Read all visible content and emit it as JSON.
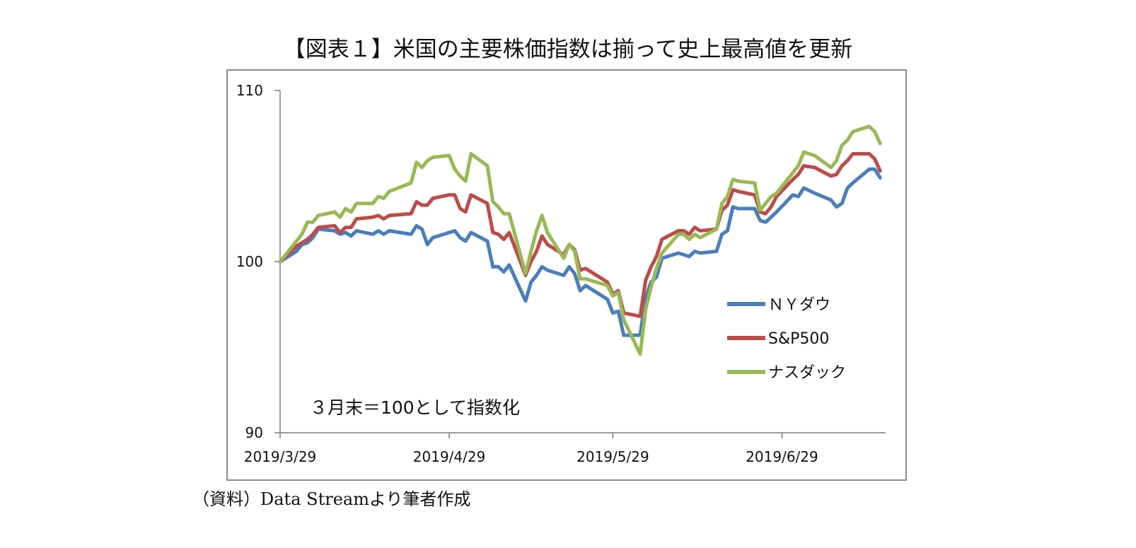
{
  "title": "【図表１】米国の主要株価指数は揃って史上最高値を更新",
  "source": "（資料）Data Streamより筆者作成",
  "colors": {
    "ny_dow": "#4a7ebb",
    "sp500": "#be4b48",
    "nasdaq": "#98b954",
    "axis": "#7f7f7f"
  },
  "chart_data": {
    "type": "line",
    "title": "【図表１】米国の主要株価指数は揃って史上最高値を更新",
    "annotation": "３月末＝100として指数化",
    "ylim": [
      90,
      110
    ],
    "yticks": [
      90,
      100,
      110
    ],
    "xlim": [
      "2019-03-29",
      "2019-07-18"
    ],
    "xticks": [
      "2019/3/29",
      "2019/4/29",
      "2019/5/29",
      "2019/6/29"
    ],
    "xtick_dates": [
      "2019-03-29",
      "2019-04-29",
      "2019-05-29",
      "2019-06-29"
    ],
    "grid": false,
    "legend_position": "right-center",
    "series": [
      {
        "name": "ＮＹダウ",
        "color": "#4a7ebb",
        "points": [
          [
            "2019-03-29",
            100.0
          ],
          [
            "2019-04-01",
            100.6
          ],
          [
            "2019-04-02",
            101.0
          ],
          [
            "2019-04-03",
            101.1
          ],
          [
            "2019-04-04",
            101.4
          ],
          [
            "2019-04-05",
            101.9
          ],
          [
            "2019-04-08",
            101.8
          ],
          [
            "2019-04-09",
            101.6
          ],
          [
            "2019-04-10",
            101.7
          ],
          [
            "2019-04-11",
            101.5
          ],
          [
            "2019-04-12",
            101.8
          ],
          [
            "2019-04-15",
            101.6
          ],
          [
            "2019-04-16",
            101.8
          ],
          [
            "2019-04-17",
            101.6
          ],
          [
            "2019-04-18",
            101.8
          ],
          [
            "2019-04-22",
            101.6
          ],
          [
            "2019-04-23",
            102.1
          ],
          [
            "2019-04-24",
            101.9
          ],
          [
            "2019-04-25",
            101.0
          ],
          [
            "2019-04-26",
            101.4
          ],
          [
            "2019-04-29",
            101.7
          ],
          [
            "2019-04-30",
            101.8
          ],
          [
            "2019-05-01",
            101.4
          ],
          [
            "2019-05-02",
            101.2
          ],
          [
            "2019-05-03",
            101.7
          ],
          [
            "2019-05-06",
            101.2
          ],
          [
            "2019-05-07",
            99.7
          ],
          [
            "2019-05-08",
            99.7
          ],
          [
            "2019-05-09",
            99.4
          ],
          [
            "2019-05-10",
            99.8
          ],
          [
            "2019-05-13",
            97.7
          ],
          [
            "2019-05-14",
            98.8
          ],
          [
            "2019-05-15",
            99.2
          ],
          [
            "2019-05-16",
            99.7
          ],
          [
            "2019-05-17",
            99.5
          ],
          [
            "2019-05-20",
            99.2
          ],
          [
            "2019-05-21",
            99.7
          ],
          [
            "2019-05-22",
            99.3
          ],
          [
            "2019-05-23",
            98.3
          ],
          [
            "2019-05-24",
            98.6
          ],
          [
            "2019-05-28",
            97.8
          ],
          [
            "2019-05-29",
            97.0
          ],
          [
            "2019-05-30",
            97.1
          ],
          [
            "2019-05-31",
            95.7
          ],
          [
            "2019-06-03",
            95.7
          ],
          [
            "2019-06-04",
            97.9
          ],
          [
            "2019-06-05",
            98.8
          ],
          [
            "2019-06-06",
            99.1
          ],
          [
            "2019-06-07",
            100.2
          ],
          [
            "2019-06-10",
            100.5
          ],
          [
            "2019-06-11",
            100.4
          ],
          [
            "2019-06-12",
            100.3
          ],
          [
            "2019-06-13",
            100.6
          ],
          [
            "2019-06-14",
            100.5
          ],
          [
            "2019-06-17",
            100.6
          ],
          [
            "2019-06-18",
            101.6
          ],
          [
            "2019-06-19",
            101.8
          ],
          [
            "2019-06-20",
            103.2
          ],
          [
            "2019-06-21",
            103.1
          ],
          [
            "2019-06-24",
            103.1
          ],
          [
            "2019-06-25",
            102.4
          ],
          [
            "2019-06-26",
            102.3
          ],
          [
            "2019-06-27",
            102.6
          ],
          [
            "2019-06-28",
            102.9
          ],
          [
            "2019-07-01",
            103.9
          ],
          [
            "2019-07-02",
            103.8
          ],
          [
            "2019-07-03",
            104.3
          ],
          [
            "2019-07-05",
            104.0
          ],
          [
            "2019-07-08",
            103.6
          ],
          [
            "2019-07-09",
            103.2
          ],
          [
            "2019-07-10",
            103.4
          ],
          [
            "2019-07-11",
            104.3
          ],
          [
            "2019-07-12",
            104.6
          ],
          [
            "2019-07-15",
            105.4
          ],
          [
            "2019-07-16",
            105.4
          ],
          [
            "2019-07-17",
            104.9
          ]
        ]
      },
      {
        "name": "S&P500",
        "color": "#be4b48",
        "points": [
          [
            "2019-03-29",
            100.0
          ],
          [
            "2019-04-01",
            100.9
          ],
          [
            "2019-04-02",
            101.1
          ],
          [
            "2019-04-03",
            101.3
          ],
          [
            "2019-04-04",
            101.6
          ],
          [
            "2019-04-05",
            102.0
          ],
          [
            "2019-04-08",
            102.1
          ],
          [
            "2019-04-09",
            101.7
          ],
          [
            "2019-04-10",
            102.0
          ],
          [
            "2019-04-11",
            102.0
          ],
          [
            "2019-04-12",
            102.5
          ],
          [
            "2019-04-15",
            102.6
          ],
          [
            "2019-04-16",
            102.7
          ],
          [
            "2019-04-17",
            102.5
          ],
          [
            "2019-04-18",
            102.7
          ],
          [
            "2019-04-22",
            102.8
          ],
          [
            "2019-04-23",
            103.5
          ],
          [
            "2019-04-24",
            103.3
          ],
          [
            "2019-04-25",
            103.3
          ],
          [
            "2019-04-26",
            103.7
          ],
          [
            "2019-04-29",
            103.9
          ],
          [
            "2019-04-30",
            103.9
          ],
          [
            "2019-05-01",
            103.1
          ],
          [
            "2019-05-02",
            102.9
          ],
          [
            "2019-05-03",
            103.9
          ],
          [
            "2019-05-06",
            103.4
          ],
          [
            "2019-05-07",
            101.7
          ],
          [
            "2019-05-08",
            101.6
          ],
          [
            "2019-05-09",
            101.3
          ],
          [
            "2019-05-10",
            101.7
          ],
          [
            "2019-05-13",
            99.2
          ],
          [
            "2019-05-14",
            100.0
          ],
          [
            "2019-05-15",
            100.6
          ],
          [
            "2019-05-16",
            101.5
          ],
          [
            "2019-05-17",
            101.0
          ],
          [
            "2019-05-20",
            100.4
          ],
          [
            "2019-05-21",
            101.0
          ],
          [
            "2019-05-22",
            100.7
          ],
          [
            "2019-05-23",
            99.5
          ],
          [
            "2019-05-24",
            99.6
          ],
          [
            "2019-05-28",
            98.8
          ],
          [
            "2019-05-29",
            98.1
          ],
          [
            "2019-05-30",
            98.3
          ],
          [
            "2019-05-31",
            97.0
          ],
          [
            "2019-06-03",
            96.8
          ],
          [
            "2019-06-04",
            98.9
          ],
          [
            "2019-06-05",
            99.7
          ],
          [
            "2019-06-06",
            100.3
          ],
          [
            "2019-06-07",
            101.3
          ],
          [
            "2019-06-10",
            101.8
          ],
          [
            "2019-06-11",
            101.8
          ],
          [
            "2019-06-12",
            101.6
          ],
          [
            "2019-06-13",
            102.0
          ],
          [
            "2019-06-14",
            101.8
          ],
          [
            "2019-06-17",
            101.9
          ],
          [
            "2019-06-18",
            103.0
          ],
          [
            "2019-06-19",
            103.3
          ],
          [
            "2019-06-20",
            104.2
          ],
          [
            "2019-06-21",
            104.1
          ],
          [
            "2019-06-24",
            103.9
          ],
          [
            "2019-06-25",
            102.9
          ],
          [
            "2019-06-26",
            102.8
          ],
          [
            "2019-06-27",
            103.2
          ],
          [
            "2019-06-28",
            103.8
          ],
          [
            "2019-07-01",
            104.8
          ],
          [
            "2019-07-02",
            105.1
          ],
          [
            "2019-07-03",
            105.6
          ],
          [
            "2019-07-05",
            105.5
          ],
          [
            "2019-07-08",
            105.0
          ],
          [
            "2019-07-09",
            105.1
          ],
          [
            "2019-07-10",
            105.6
          ],
          [
            "2019-07-11",
            105.9
          ],
          [
            "2019-07-12",
            106.3
          ],
          [
            "2019-07-15",
            106.3
          ],
          [
            "2019-07-16",
            106.0
          ],
          [
            "2019-07-17",
            105.3
          ]
        ]
      },
      {
        "name": "ナスダック",
        "color": "#98b954",
        "points": [
          [
            "2019-03-29",
            100.0
          ],
          [
            "2019-04-01",
            101.2
          ],
          [
            "2019-04-02",
            101.6
          ],
          [
            "2019-04-03",
            102.3
          ],
          [
            "2019-04-04",
            102.3
          ],
          [
            "2019-04-05",
            102.7
          ],
          [
            "2019-04-08",
            102.9
          ],
          [
            "2019-04-09",
            102.6
          ],
          [
            "2019-04-10",
            103.1
          ],
          [
            "2019-04-11",
            102.9
          ],
          [
            "2019-04-12",
            103.4
          ],
          [
            "2019-04-15",
            103.4
          ],
          [
            "2019-04-16",
            103.8
          ],
          [
            "2019-04-17",
            103.7
          ],
          [
            "2019-04-18",
            104.1
          ],
          [
            "2019-04-22",
            104.6
          ],
          [
            "2019-04-23",
            105.8
          ],
          [
            "2019-04-24",
            105.5
          ],
          [
            "2019-04-25",
            105.9
          ],
          [
            "2019-04-26",
            106.1
          ],
          [
            "2019-04-29",
            106.2
          ],
          [
            "2019-04-30",
            105.4
          ],
          [
            "2019-05-01",
            105.0
          ],
          [
            "2019-05-02",
            104.7
          ],
          [
            "2019-05-03",
            106.3
          ],
          [
            "2019-05-06",
            105.6
          ],
          [
            "2019-05-07",
            103.5
          ],
          [
            "2019-05-08",
            103.2
          ],
          [
            "2019-05-09",
            102.8
          ],
          [
            "2019-05-10",
            102.8
          ],
          [
            "2019-05-13",
            99.3
          ],
          [
            "2019-05-14",
            100.6
          ],
          [
            "2019-05-15",
            101.8
          ],
          [
            "2019-05-16",
            102.7
          ],
          [
            "2019-05-17",
            101.7
          ],
          [
            "2019-05-20",
            100.2
          ],
          [
            "2019-05-21",
            101.0
          ],
          [
            "2019-05-22",
            100.6
          ],
          [
            "2019-05-23",
            99.0
          ],
          [
            "2019-05-24",
            99.0
          ],
          [
            "2019-05-28",
            98.6
          ],
          [
            "2019-05-29",
            98.0
          ],
          [
            "2019-05-30",
            98.2
          ],
          [
            "2019-05-31",
            96.6
          ],
          [
            "2019-06-03",
            94.6
          ],
          [
            "2019-06-04",
            97.2
          ],
          [
            "2019-06-05",
            98.5
          ],
          [
            "2019-06-06",
            99.6
          ],
          [
            "2019-06-07",
            100.5
          ],
          [
            "2019-06-10",
            101.6
          ],
          [
            "2019-06-11",
            101.6
          ],
          [
            "2019-06-12",
            101.3
          ],
          [
            "2019-06-13",
            101.6
          ],
          [
            "2019-06-14",
            101.4
          ],
          [
            "2019-06-17",
            101.9
          ],
          [
            "2019-06-18",
            103.4
          ],
          [
            "2019-06-19",
            103.8
          ],
          [
            "2019-06-20",
            104.8
          ],
          [
            "2019-06-21",
            104.7
          ],
          [
            "2019-06-24",
            104.6
          ],
          [
            "2019-06-25",
            103.0
          ],
          [
            "2019-06-26",
            103.4
          ],
          [
            "2019-06-27",
            103.8
          ],
          [
            "2019-06-28",
            104.0
          ],
          [
            "2019-07-01",
            105.2
          ],
          [
            "2019-07-02",
            105.6
          ],
          [
            "2019-07-03",
            106.4
          ],
          [
            "2019-07-05",
            106.2
          ],
          [
            "2019-07-08",
            105.5
          ],
          [
            "2019-07-09",
            105.9
          ],
          [
            "2019-07-10",
            106.8
          ],
          [
            "2019-07-11",
            107.1
          ],
          [
            "2019-07-12",
            107.6
          ],
          [
            "2019-07-15",
            107.9
          ],
          [
            "2019-07-16",
            107.6
          ],
          [
            "2019-07-17",
            106.9
          ]
        ]
      }
    ]
  }
}
